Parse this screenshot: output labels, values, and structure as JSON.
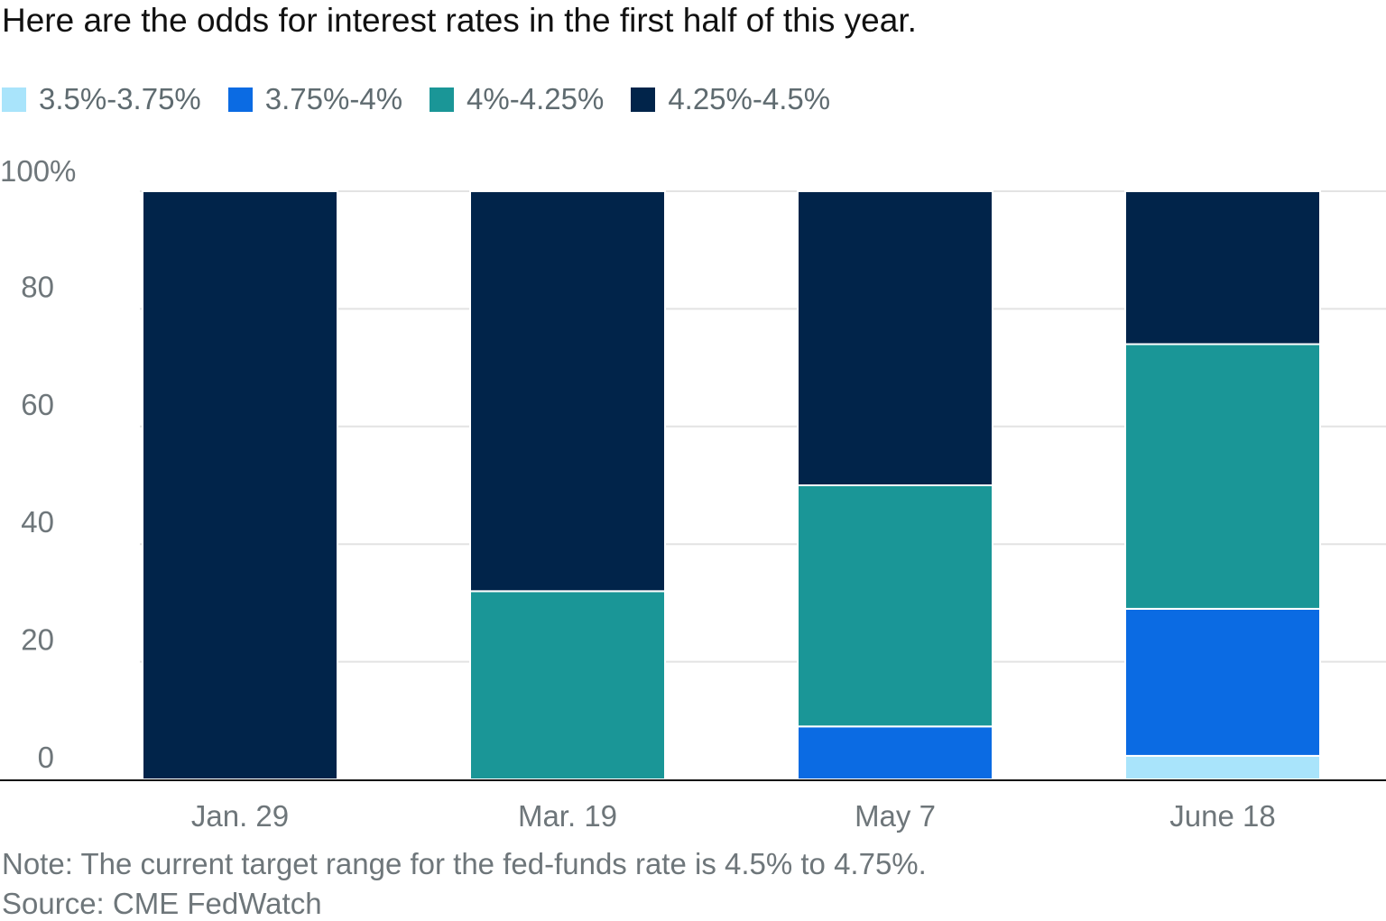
{
  "chart_data": {
    "type": "bar",
    "stacked": true,
    "title": "Here are the odds for interest rates in the first half of this year.",
    "categories": [
      "Jan. 29",
      "Mar. 19",
      "May 7",
      "June 18"
    ],
    "series": [
      {
        "name": "3.5%-3.75%",
        "color": "#a9e4fb",
        "values": [
          0,
          0,
          0,
          4
        ]
      },
      {
        "name": "3.75%-4%",
        "color": "#0b6be3",
        "values": [
          0,
          0,
          9,
          25
        ]
      },
      {
        "name": "4%-4.25%",
        "color": "#1a9697",
        "values": [
          0,
          32,
          41,
          45
        ]
      },
      {
        "name": "4.25%-4.5%",
        "color": "#01244a",
        "values": [
          100,
          68,
          50,
          26
        ]
      }
    ],
    "y_ticks": [
      "0",
      "20",
      "40",
      "60",
      "80",
      "100%"
    ],
    "y_tick_values": [
      0,
      20,
      40,
      60,
      80,
      100
    ],
    "ylim": [
      0,
      100
    ],
    "xlabel": "",
    "ylabel": "",
    "grid": true,
    "legend_position": "top-left",
    "note": "Note: The current target range for the fed-funds rate is 4.5% to 4.75%.",
    "source": "Source: CME FedWatch"
  }
}
